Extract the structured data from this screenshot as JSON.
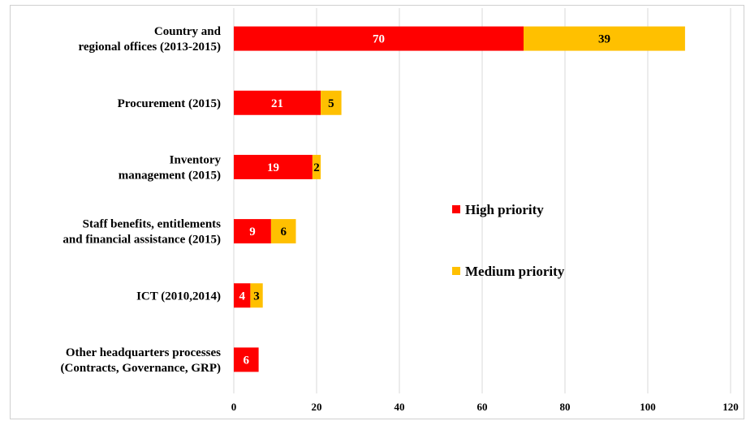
{
  "chart_data": {
    "type": "bar",
    "orientation": "horizontal",
    "stacked": true,
    "categories": [
      [
        "Country and",
        "regional offices (2013-2015)"
      ],
      [
        "Procurement (2015)"
      ],
      [
        "Inventory",
        "management (2015)"
      ],
      [
        "Staff benefits, entitlements",
        "and financial assistance (2015)"
      ],
      [
        "ICT (2010,2014)"
      ],
      [
        "Other headquarters processes",
        "(Contracts, Governance, GRP)"
      ]
    ],
    "series": [
      {
        "name": "High priority",
        "color": "#ff0000",
        "label_color": "#ffffff",
        "values": [
          70,
          21,
          19,
          9,
          4,
          6
        ]
      },
      {
        "name": "Medium priority",
        "color": "#ffc000",
        "label_color": "#000000",
        "values": [
          39,
          5,
          2,
          6,
          3,
          null
        ]
      }
    ],
    "xlim": [
      0,
      120
    ],
    "xticks": [
      "0",
      "20",
      "40",
      "60",
      "80",
      "100",
      "120"
    ],
    "grid": true,
    "legend_position": "right"
  }
}
